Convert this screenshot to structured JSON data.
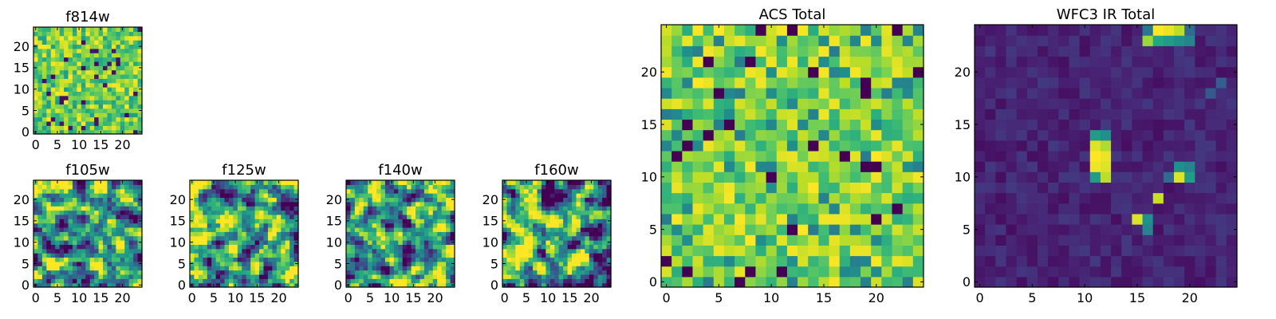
{
  "chart_data": [
    {
      "type": "heatmap",
      "key": "f814w",
      "title": "f814w",
      "grid_size": 25,
      "colormap": "viridis",
      "x_ticks": [
        0,
        5,
        10,
        15,
        20
      ],
      "y_ticks": [
        0,
        5,
        10,
        15,
        20
      ],
      "xlim": [
        -0.5,
        24.5
      ],
      "ylim": [
        -0.5,
        24.5
      ],
      "value_range": [
        0,
        1
      ],
      "texture": "noise",
      "seed": 11,
      "hotspots": []
    },
    {
      "type": "heatmap",
      "key": "f105w",
      "title": "f105w",
      "grid_size": 25,
      "colormap": "viridis",
      "x_ticks": [
        0,
        5,
        10,
        15,
        20
      ],
      "y_ticks": [
        0,
        5,
        10,
        15,
        20
      ],
      "xlim": [
        -0.5,
        24.5
      ],
      "ylim": [
        -0.5,
        24.5
      ],
      "value_range": [
        0,
        1
      ],
      "texture": "smooth",
      "seed": 23,
      "hotspots": []
    },
    {
      "type": "heatmap",
      "key": "f125w",
      "title": "f125w",
      "grid_size": 25,
      "colormap": "viridis",
      "x_ticks": [
        0,
        5,
        10,
        15,
        20
      ],
      "y_ticks": [
        0,
        5,
        10,
        15,
        20
      ],
      "xlim": [
        -0.5,
        24.5
      ],
      "ylim": [
        -0.5,
        24.5
      ],
      "value_range": [
        0,
        1
      ],
      "texture": "smooth",
      "seed": 37,
      "hotspots": []
    },
    {
      "type": "heatmap",
      "key": "f140w",
      "title": "f140w",
      "grid_size": 25,
      "colormap": "viridis",
      "x_ticks": [
        0,
        5,
        10,
        15,
        20
      ],
      "y_ticks": [
        0,
        5,
        10,
        15,
        20
      ],
      "xlim": [
        -0.5,
        24.5
      ],
      "ylim": [
        -0.5,
        24.5
      ],
      "value_range": [
        0,
        1
      ],
      "texture": "smooth",
      "seed": 41,
      "hotspots": []
    },
    {
      "type": "heatmap",
      "key": "f160w",
      "title": "f160w",
      "grid_size": 25,
      "colormap": "viridis",
      "x_ticks": [
        0,
        5,
        10,
        15,
        20
      ],
      "y_ticks": [
        0,
        5,
        10,
        15,
        20
      ],
      "xlim": [
        -0.5,
        24.5
      ],
      "ylim": [
        -0.5,
        24.5
      ],
      "value_range": [
        0,
        1
      ],
      "texture": "smooth",
      "seed": 53,
      "hotspots": []
    },
    {
      "type": "heatmap",
      "key": "acs_total",
      "title": "ACS Total",
      "grid_size": 25,
      "colormap": "viridis",
      "x_ticks": [
        0,
        5,
        10,
        15,
        20
      ],
      "y_ticks": [
        0,
        5,
        10,
        15,
        20
      ],
      "xlim": [
        -0.5,
        24.5
      ],
      "ylim": [
        -0.5,
        24.5
      ],
      "value_range": [
        0,
        1
      ],
      "texture": "acs",
      "seed": 67,
      "hotspots": []
    },
    {
      "type": "heatmap",
      "key": "wfc3_ir_total",
      "title": "WFC3 IR Total",
      "grid_size": 25,
      "colormap": "viridis",
      "x_ticks": [
        0,
        5,
        10,
        15,
        20
      ],
      "y_ticks": [
        0,
        5,
        10,
        15,
        20
      ],
      "xlim": [
        -0.5,
        24.5
      ],
      "ylim": [
        -0.5,
        24.5
      ],
      "value_range": [
        0,
        1
      ],
      "texture": "background",
      "seed": 79,
      "hotspots": [
        {
          "col": 11,
          "row": 13,
          "value": 0.95
        },
        {
          "col": 11,
          "row": 12,
          "value": 1.0
        },
        {
          "col": 12,
          "row": 12,
          "value": 0.97
        },
        {
          "col": 11,
          "row": 11,
          "value": 0.98
        },
        {
          "col": 12,
          "row": 11,
          "value": 0.95
        },
        {
          "col": 12,
          "row": 10,
          "value": 0.9
        },
        {
          "col": 11,
          "row": 10,
          "value": 0.55
        },
        {
          "col": 11,
          "row": 14,
          "value": 0.55
        },
        {
          "col": 12,
          "row": 14,
          "value": 0.5
        },
        {
          "col": 12,
          "row": 13,
          "value": 0.88
        },
        {
          "col": 19,
          "row": 10,
          "value": 0.95
        },
        {
          "col": 20,
          "row": 10,
          "value": 0.55
        },
        {
          "col": 19,
          "row": 11,
          "value": 0.5
        },
        {
          "col": 20,
          "row": 11,
          "value": 0.45
        },
        {
          "col": 18,
          "row": 10,
          "value": 0.35
        },
        {
          "col": 17,
          "row": 8,
          "value": 0.92
        },
        {
          "col": 15,
          "row": 6,
          "value": 0.95
        },
        {
          "col": 16,
          "row": 6,
          "value": 0.5
        },
        {
          "col": 16,
          "row": 5,
          "value": 0.45
        },
        {
          "col": 17,
          "row": 24,
          "value": 1.0
        },
        {
          "col": 18,
          "row": 24,
          "value": 0.97
        },
        {
          "col": 19,
          "row": 24,
          "value": 0.9
        },
        {
          "col": 16,
          "row": 23,
          "value": 0.85
        },
        {
          "col": 17,
          "row": 23,
          "value": 0.6
        },
        {
          "col": 18,
          "row": 23,
          "value": 0.55
        },
        {
          "col": 19,
          "row": 23,
          "value": 0.5
        },
        {
          "col": 20,
          "row": 23,
          "value": 0.45
        },
        {
          "col": 16,
          "row": 24,
          "value": 0.4
        },
        {
          "col": 20,
          "row": 24,
          "value": 0.35
        },
        {
          "col": 23,
          "row": 19,
          "value": 0.3
        },
        {
          "col": 22,
          "row": 18,
          "value": 0.28
        }
      ]
    }
  ]
}
